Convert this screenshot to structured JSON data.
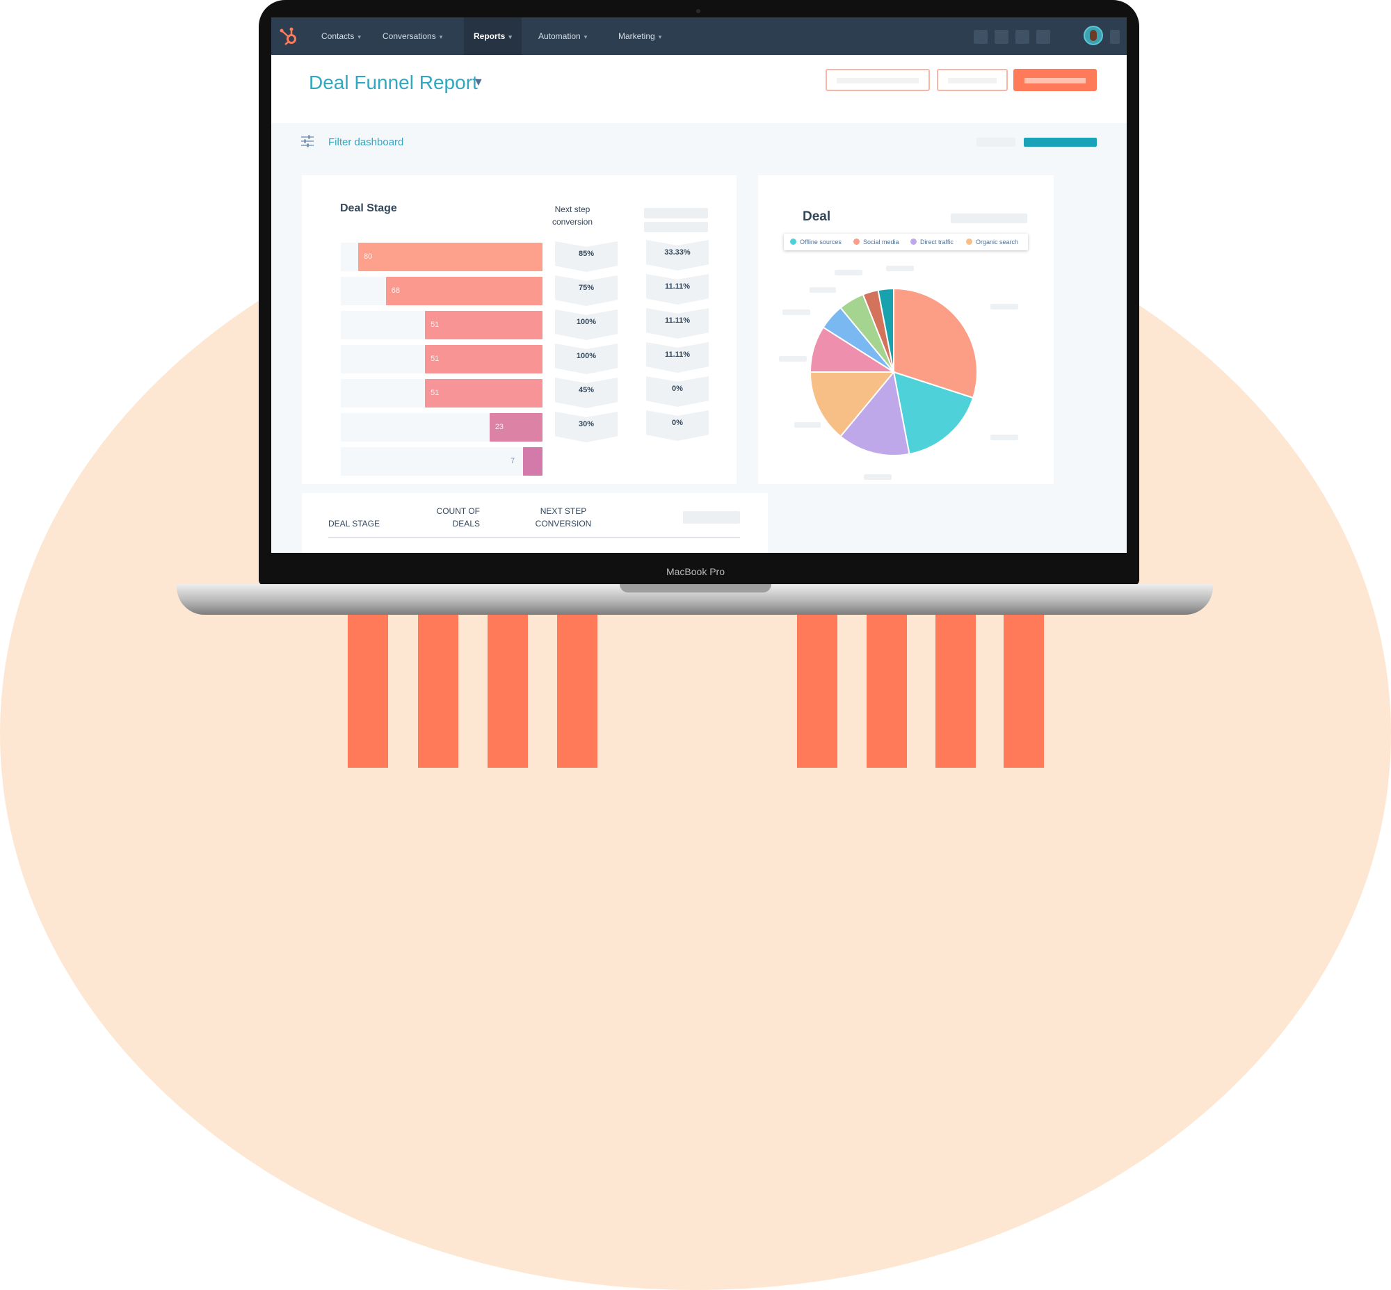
{
  "topnav": {
    "items": [
      {
        "label": "Contacts"
      },
      {
        "label": "Conversations"
      },
      {
        "label": "Reports"
      },
      {
        "label": "Automation"
      },
      {
        "label": "Marketing"
      }
    ]
  },
  "report": {
    "title": "Deal Funnel Report"
  },
  "filter": {
    "label": "Filter dashboard"
  },
  "funnel": {
    "title": "Deal Stage",
    "column_header": "Next step conversion",
    "stages": [
      {
        "value": "80",
        "conversion": "85%",
        "rate": "33.33%",
        "color": "#fda08c"
      },
      {
        "value": "68",
        "conversion": "75%",
        "rate": "11.11%",
        "color": "#fb998f"
      },
      {
        "value": "51",
        "conversion": "100%",
        "rate": "11.11%",
        "color": "#f99494"
      },
      {
        "value": "51",
        "conversion": "100%",
        "rate": "11.11%",
        "color": "#f99494"
      },
      {
        "value": "51",
        "conversion": "45%",
        "rate": "0%",
        "color": "#f79497"
      },
      {
        "value": "23",
        "conversion": "30%",
        "rate": "0%",
        "color": "#dc82a4"
      },
      {
        "value": "7",
        "color": "#d47aaa"
      }
    ]
  },
  "pie": {
    "title": "Deal",
    "legend": [
      {
        "label": "Offline sources",
        "color": "#4fd1d9"
      },
      {
        "label": "Social media",
        "color": "#fc9d86"
      },
      {
        "label": "Direct traffic",
        "color": "#bfa8ea"
      },
      {
        "label": "Organic search",
        "color": "#f7bf85"
      }
    ]
  },
  "chart_data": {
    "type": "pie",
    "title": "Deal",
    "series": [
      {
        "name": "Social media",
        "value": 30,
        "color": "#fc9d86"
      },
      {
        "name": "Offline sources",
        "value": 17,
        "color": "#4fd1d9"
      },
      {
        "name": "Direct traffic",
        "value": 14,
        "color": "#bfa8ea"
      },
      {
        "name": "Organic search",
        "value": 14,
        "color": "#f7bf85"
      },
      {
        "value": 9,
        "color": "#ef8fae"
      },
      {
        "value": 5,
        "color": "#7ab8f2"
      },
      {
        "value": 5,
        "color": "#a4d48f"
      },
      {
        "value": 3,
        "color": "#d4735b"
      },
      {
        "value": 3,
        "color": "#17a2ad"
      }
    ]
  },
  "table": {
    "col1": "DEAL STAGE",
    "col2": "COUNT OF DEALS",
    "col3": "NEXT STEP CONVERSION"
  },
  "device": {
    "label": "MacBook Pro"
  }
}
